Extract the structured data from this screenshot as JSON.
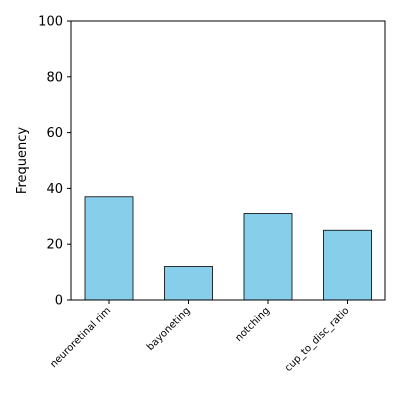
{
  "chart_data": {
    "type": "bar",
    "title": "",
    "xlabel": "",
    "ylabel": "Frequency",
    "categories": [
      "neuroretinal rim",
      "bayoneting",
      "notching",
      "cup_to_disc_ratio"
    ],
    "values": [
      37,
      12,
      31,
      25
    ],
    "ylim": [
      0,
      100
    ],
    "yticks": [
      0,
      20,
      40,
      60,
      80,
      100
    ],
    "grid": false,
    "legend": "none",
    "bar_color": "#87CEEB",
    "bar_edge_color": "#000000"
  }
}
